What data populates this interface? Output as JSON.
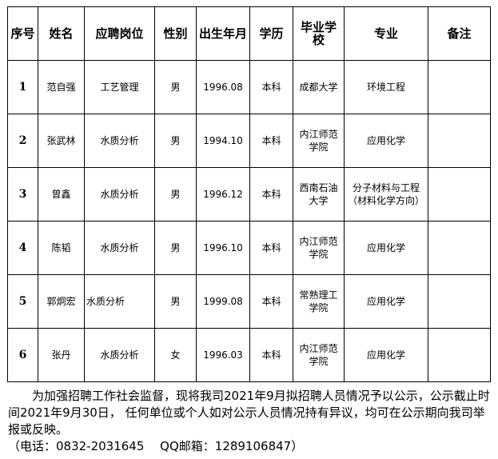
{
  "table": {
    "headers": [
      "序号",
      "姓名",
      "应聘岗位",
      "性别",
      "出生年月",
      "学历",
      "毕业学校",
      "专业",
      "备注"
    ],
    "rows": [
      [
        "1",
        "范自强",
        "工艺管理",
        "男",
        "1996.08",
        "本科",
        "成都大学",
        "环境工程",
        ""
      ],
      [
        "2",
        "张武林",
        "水质分析",
        "男",
        "1994.10",
        "本科",
        "内江师范学院",
        "应用化学",
        ""
      ],
      [
        "3",
        "曾鑫",
        "水质分析",
        "男",
        "1996.12",
        "本科",
        "西南石油大学",
        "分子材料与工程（材料化学方向）",
        ""
      ],
      [
        "4",
        "陈韬",
        "水质分析",
        "男",
        "1996.10",
        "本科",
        "内江师范学院",
        "应用化学",
        ""
      ],
      [
        "5",
        "郭炯宏",
        "水质分析",
        "男",
        "1999.08",
        "本科",
        "常熟理工学院",
        "应用化学",
        ""
      ],
      [
        "6",
        "张丹",
        "水质分析",
        "女",
        "1996.03",
        "本科",
        "内江师范学院",
        "应用化学",
        ""
      ]
    ]
  },
  "notice": {
    "paragraph": "为加强招聘工作社会监督，现将我司2021年9月拟招聘人员情况予以公示，公示截止时间2021年9月30日， 任何单位或个人如对公示人员情况持有异议，均可在公示期向我司举报或反映。",
    "contact": "（电话：0832-2031645　 QQ邮箱：1289106847）"
  }
}
